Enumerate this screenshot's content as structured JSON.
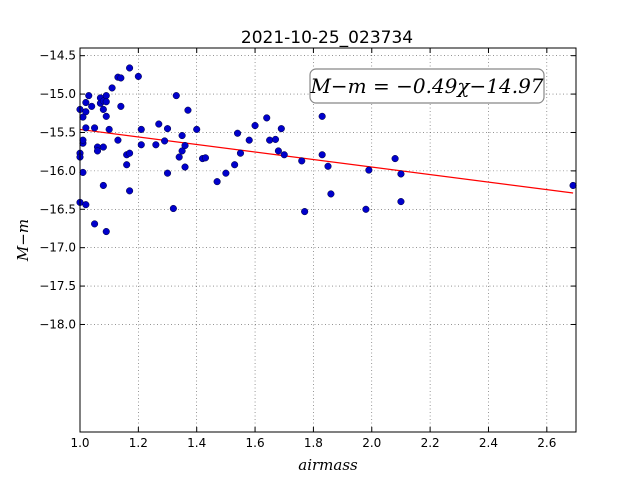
{
  "chart_data": {
    "type": "scatter",
    "title": "2021-10-25_023734",
    "xlabel": "airmass",
    "ylabel": "M−m",
    "xlim": [
      1.0,
      2.7
    ],
    "ylim": [
      -14.4,
      -19.4
    ],
    "grid": true,
    "xticks": [
      "1.0",
      "1.2",
      "1.4",
      "1.6",
      "1.8",
      "2.0",
      "2.2",
      "2.4",
      "2.6"
    ],
    "yticks": [
      "−14.5",
      "−15.0",
      "−15.5",
      "−16.0",
      "−16.5",
      "−17.0",
      "−17.5",
      "−18.0"
    ],
    "annotation": "M−m = −0.49χ−14.97",
    "colors": {
      "points": "#0000cc",
      "fit": "#ff0000"
    },
    "fit": {
      "slope": -0.49,
      "intercept": -14.97,
      "x": [
        1.0,
        2.69
      ]
    },
    "points": [
      [
        1.0,
        -15.2
      ],
      [
        1.0,
        -15.77
      ],
      [
        1.0,
        -15.82
      ],
      [
        1.0,
        -16.41
      ],
      [
        1.01,
        -15.3
      ],
      [
        1.01,
        -15.64
      ],
      [
        1.01,
        -15.6
      ],
      [
        1.01,
        -16.02
      ],
      [
        1.02,
        -15.11
      ],
      [
        1.02,
        -15.23
      ],
      [
        1.02,
        -15.44
      ],
      [
        1.02,
        -16.44
      ],
      [
        1.03,
        -15.02
      ],
      [
        1.04,
        -15.16
      ],
      [
        1.05,
        -15.44
      ],
      [
        1.05,
        -16.69
      ],
      [
        1.06,
        -15.69
      ],
      [
        1.06,
        -15.74
      ],
      [
        1.07,
        -15.05
      ],
      [
        1.07,
        -15.12
      ],
      [
        1.08,
        -15.2
      ],
      [
        1.08,
        -15.69
      ],
      [
        1.08,
        -15.09
      ],
      [
        1.09,
        -15.02
      ],
      [
        1.09,
        -15.1
      ],
      [
        1.09,
        -15.29
      ],
      [
        1.08,
        -16.19
      ],
      [
        1.09,
        -16.79
      ],
      [
        1.1,
        -15.46
      ],
      [
        1.11,
        -14.92
      ],
      [
        1.13,
        -14.78
      ],
      [
        1.13,
        -15.6
      ],
      [
        1.14,
        -14.79
      ],
      [
        1.14,
        -15.16
      ],
      [
        1.16,
        -15.79
      ],
      [
        1.16,
        -15.92
      ],
      [
        1.17,
        -14.66
      ],
      [
        1.17,
        -15.77
      ],
      [
        1.17,
        -16.26
      ],
      [
        1.2,
        -14.77
      ],
      [
        1.21,
        -15.46
      ],
      [
        1.21,
        -15.66
      ],
      [
        1.26,
        -15.66
      ],
      [
        1.27,
        -15.39
      ],
      [
        1.29,
        -15.61
      ],
      [
        1.3,
        -15.45
      ],
      [
        1.3,
        -16.03
      ],
      [
        1.32,
        -16.49
      ],
      [
        1.33,
        -15.02
      ],
      [
        1.34,
        -15.82
      ],
      [
        1.35,
        -15.54
      ],
      [
        1.35,
        -15.74
      ],
      [
        1.36,
        -15.67
      ],
      [
        1.36,
        -15.95
      ],
      [
        1.37,
        -15.21
      ],
      [
        1.4,
        -15.46
      ],
      [
        1.42,
        -15.84
      ],
      [
        1.43,
        -15.83
      ],
      [
        1.47,
        -16.14
      ],
      [
        1.5,
        -16.03
      ],
      [
        1.53,
        -15.92
      ],
      [
        1.54,
        -15.51
      ],
      [
        1.55,
        -15.77
      ],
      [
        1.58,
        -15.6
      ],
      [
        1.6,
        -15.41
      ],
      [
        1.64,
        -15.31
      ],
      [
        1.65,
        -15.6
      ],
      [
        1.67,
        -15.59
      ],
      [
        1.68,
        -15.74
      ],
      [
        1.69,
        -15.45
      ],
      [
        1.7,
        -15.79
      ],
      [
        1.76,
        -15.87
      ],
      [
        1.77,
        -16.53
      ],
      [
        1.83,
        -15.29
      ],
      [
        1.83,
        -15.79
      ],
      [
        1.85,
        -15.94
      ],
      [
        1.86,
        -16.3
      ],
      [
        1.98,
        -16.5
      ],
      [
        1.99,
        -15.99
      ],
      [
        2.08,
        -15.84
      ],
      [
        2.1,
        -16.04
      ],
      [
        2.1,
        -16.4
      ],
      [
        2.69,
        -16.19
      ]
    ]
  }
}
